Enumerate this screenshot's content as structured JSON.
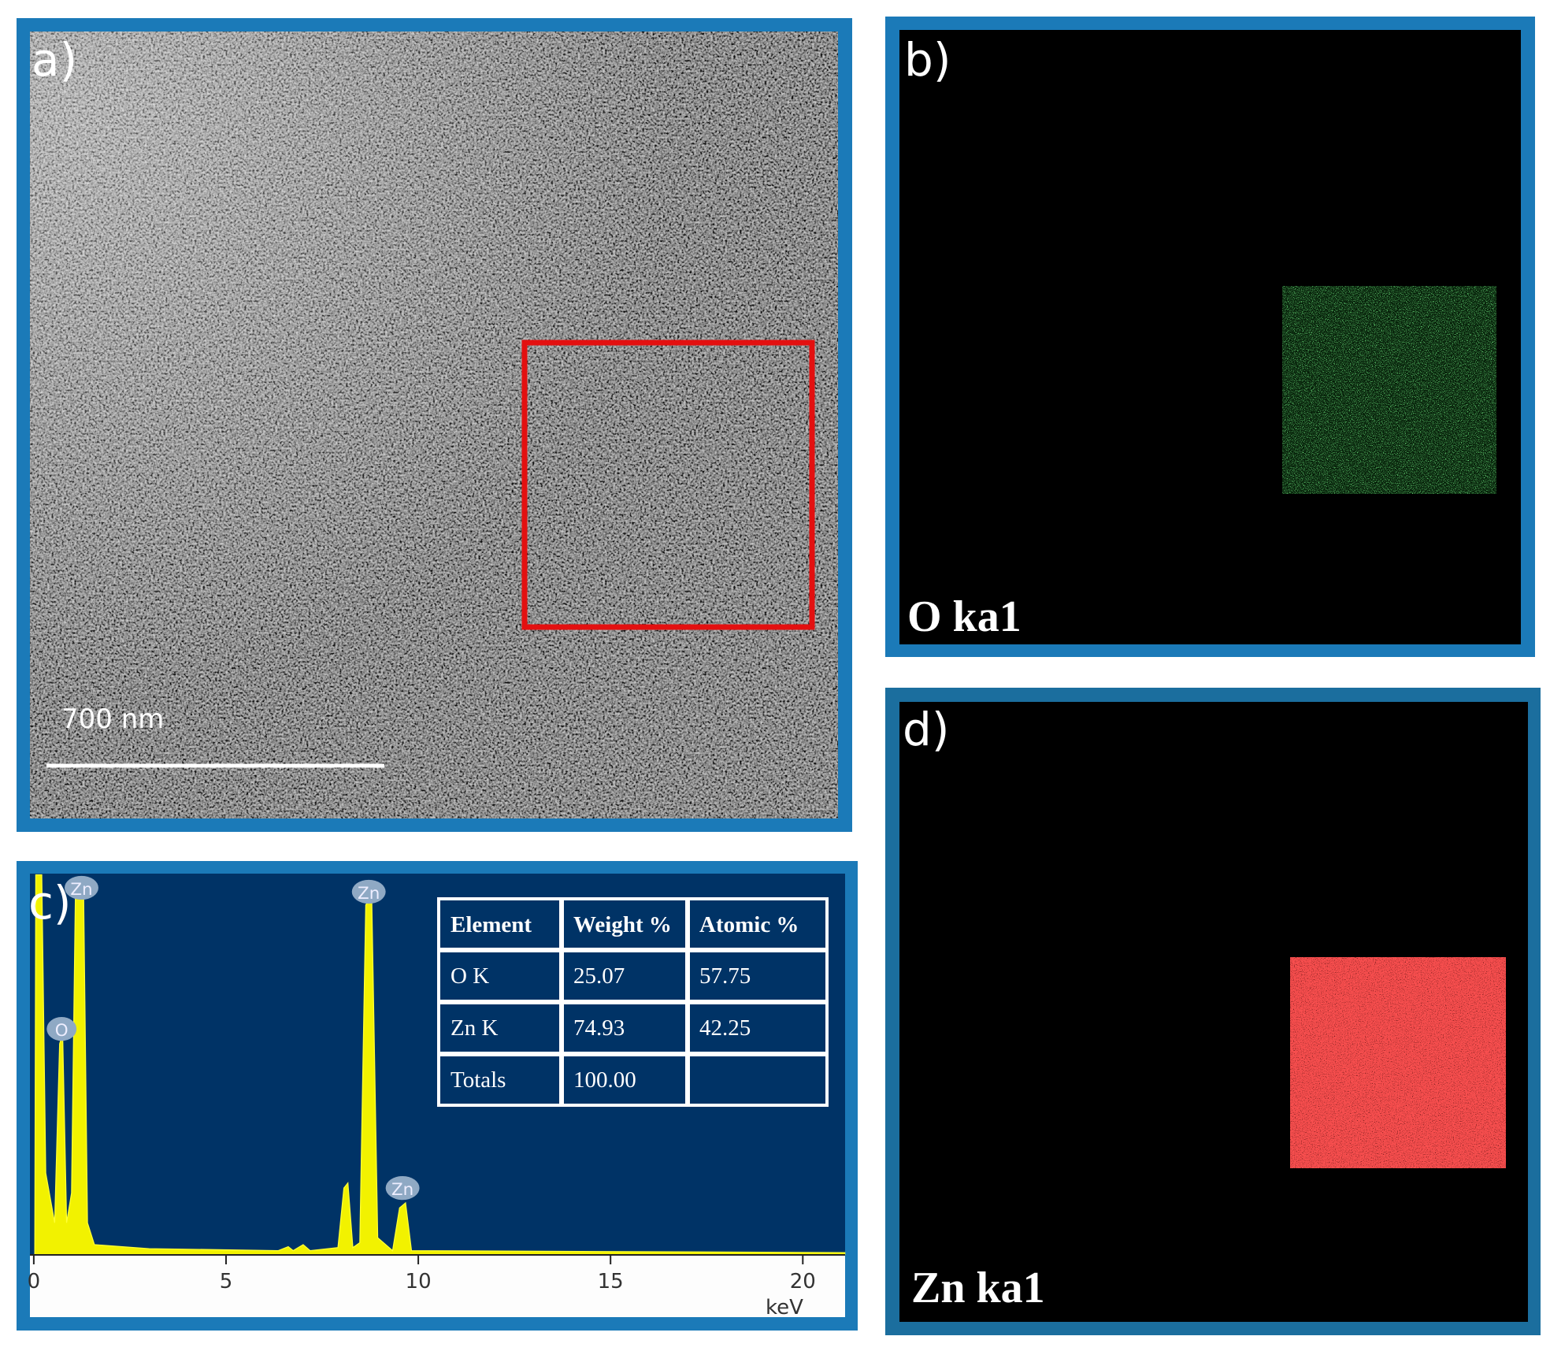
{
  "panels": {
    "a": {
      "label": "a)",
      "scale_bar": "700 nm"
    },
    "b": {
      "label": "b)",
      "map": "O ka1"
    },
    "c": {
      "label": "c)",
      "peaks": [
        "Zn",
        "O",
        "Zn",
        "Zn"
      ],
      "x_axis": {
        "unit": "keV",
        "xlim": [
          -0.1,
          21.1
        ],
        "xticks": [
          0,
          5,
          10,
          15,
          20
        ]
      },
      "table": {
        "header": [
          "Element",
          "Weight %",
          "Atomic %"
        ],
        "rows": [
          [
            "O K",
            "25.07",
            "57.75"
          ],
          [
            "Zn K",
            "74.93",
            "42.25"
          ],
          [
            "Totals",
            "100.00"
          ]
        ]
      }
    },
    "d": {
      "label": "d)",
      "map": "Zn ka1"
    }
  }
}
